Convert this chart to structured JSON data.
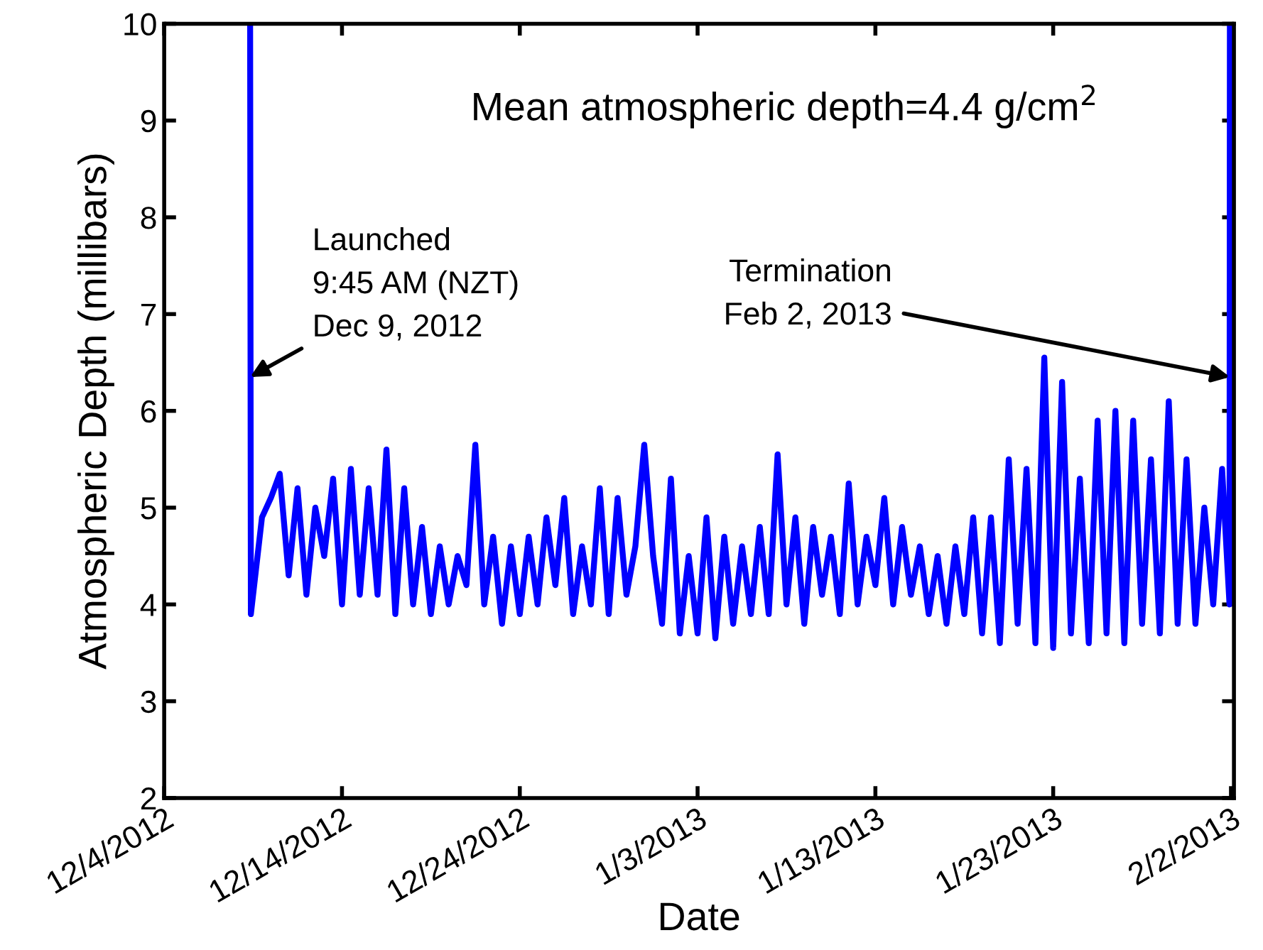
{
  "chart_data": {
    "type": "line",
    "xlabel": "Date",
    "ylabel": "Atmospheric Depth (millibars)",
    "xlim": [
      "2012-12-04",
      "2013-02-02T04:00"
    ],
    "xticks": [
      {
        "value": "2012-12-04",
        "label": "12/4/2012"
      },
      {
        "value": "2012-12-14",
        "label": "12/14/2012"
      },
      {
        "value": "2012-12-24",
        "label": "12/24/2012"
      },
      {
        "value": "2013-01-03",
        "label": "1/3/2013"
      },
      {
        "value": "2013-01-13",
        "label": "1/13/2013"
      },
      {
        "value": "2013-01-23",
        "label": "1/23/2013"
      },
      {
        "value": "2013-02-02",
        "label": "2/2/2013"
      }
    ],
    "ylim": [
      2,
      10
    ],
    "yticks": [
      2,
      3,
      4,
      5,
      6,
      7,
      8,
      9,
      10
    ],
    "grid": false,
    "legend": false,
    "marker": "none",
    "line_style": "solid",
    "annotations": [
      "Mean atmospheric depth=4.4 g/cm$^{2}$",
      {
        "text": "Launched\n9:45 AM (NZT)\nDec 9, 2012",
        "x": "2012-12-08T20:00",
        "y": 6.35
      },
      {
        "text": "Termination\nFeb 2, 2013",
        "x": "2013-02-01T22:30",
        "y": 6.35
      }
    ],
    "series": [
      {
        "color": "#0000ff",
        "x": [
          "2012-12-08T20:00",
          "2012-12-08T21:00",
          "2012-12-09T12:00",
          "2012-12-10T00:00",
          "2012-12-10T12:00",
          "2012-12-11T00:00",
          "2012-12-11T12:00",
          "2012-12-12T00:00",
          "2012-12-12T12:00",
          "2012-12-13T00:00",
          "2012-12-13T12:00",
          "2012-12-14T00:00",
          "2012-12-14T12:00",
          "2012-12-15T00:00",
          "2012-12-15T12:00",
          "2012-12-16T00:00",
          "2012-12-16T12:00",
          "2012-12-17T00:00",
          "2012-12-17T12:00",
          "2012-12-18T00:00",
          "2012-12-18T12:00",
          "2012-12-19T00:00",
          "2012-12-19T12:00",
          "2012-12-20T00:00",
          "2012-12-20T12:00",
          "2012-12-21T00:00",
          "2012-12-21T12:00",
          "2012-12-22T00:00",
          "2012-12-22T12:00",
          "2012-12-23T00:00",
          "2012-12-23T12:00",
          "2012-12-24T00:00",
          "2012-12-24T12:00",
          "2012-12-25T00:00",
          "2012-12-25T12:00",
          "2012-12-26T00:00",
          "2012-12-26T12:00",
          "2012-12-27T00:00",
          "2012-12-27T12:00",
          "2012-12-28T00:00",
          "2012-12-28T12:00",
          "2012-12-29T00:00",
          "2012-12-29T12:00",
          "2012-12-30T00:00",
          "2012-12-30T12:00",
          "2012-12-31T00:00",
          "2012-12-31T12:00",
          "2013-01-01T00:00",
          "2013-01-01T12:00",
          "2013-01-02T00:00",
          "2013-01-02T12:00",
          "2013-01-03T00:00",
          "2013-01-03T12:00",
          "2013-01-04T00:00",
          "2013-01-04T12:00",
          "2013-01-05T00:00",
          "2013-01-05T12:00",
          "2013-01-06T00:00",
          "2013-01-06T12:00",
          "2013-01-07T00:00",
          "2013-01-07T12:00",
          "2013-01-08T00:00",
          "2013-01-08T12:00",
          "2013-01-09T00:00",
          "2013-01-09T12:00",
          "2013-01-10T00:00",
          "2013-01-10T12:00",
          "2013-01-11T00:00",
          "2013-01-11T12:00",
          "2013-01-12T00:00",
          "2013-01-12T12:00",
          "2013-01-13T00:00",
          "2013-01-13T12:00",
          "2013-01-14T00:00",
          "2013-01-14T12:00",
          "2013-01-15T00:00",
          "2013-01-15T12:00",
          "2013-01-16T00:00",
          "2013-01-16T12:00",
          "2013-01-17T00:00",
          "2013-01-17T12:00",
          "2013-01-18T00:00",
          "2013-01-18T12:00",
          "2013-01-19T00:00",
          "2013-01-19T12:00",
          "2013-01-20T00:00",
          "2013-01-20T12:00",
          "2013-01-21T00:00",
          "2013-01-21T12:00",
          "2013-01-22T00:00",
          "2013-01-22T12:00",
          "2013-01-23T00:00",
          "2013-01-23T12:00",
          "2013-01-24T00:00",
          "2013-01-24T12:00",
          "2013-01-25T00:00",
          "2013-01-25T12:00",
          "2013-01-26T00:00",
          "2013-01-26T12:00",
          "2013-01-27T00:00",
          "2013-01-27T12:00",
          "2013-01-28T00:00",
          "2013-01-28T12:00",
          "2013-01-29T00:00",
          "2013-01-29T12:00",
          "2013-01-30T00:00",
          "2013-01-30T12:00",
          "2013-01-31T00:00",
          "2013-01-31T12:00",
          "2013-02-01T00:00",
          "2013-02-01T12:00",
          "2013-02-01T22:00",
          "2013-02-01T22:30"
        ],
        "values": [
          10,
          3.9,
          4.9,
          5.1,
          5.35,
          4.3,
          5.2,
          4.1,
          5.0,
          4.5,
          5.3,
          4.0,
          5.4,
          4.1,
          5.2,
          4.1,
          5.6,
          3.9,
          5.2,
          4.0,
          4.8,
          3.9,
          4.6,
          4.0,
          4.5,
          4.2,
          5.65,
          4.0,
          4.7,
          3.8,
          4.6,
          3.9,
          4.7,
          4.0,
          4.9,
          4.2,
          5.1,
          3.9,
          4.6,
          4.0,
          5.2,
          3.9,
          5.1,
          4.1,
          4.6,
          5.65,
          4.5,
          3.8,
          5.3,
          3.7,
          4.5,
          3.7,
          4.9,
          3.65,
          4.7,
          3.8,
          4.6,
          3.9,
          4.8,
          3.9,
          5.55,
          4.0,
          4.9,
          3.8,
          4.8,
          4.1,
          4.7,
          3.9,
          5.25,
          4.0,
          4.7,
          4.2,
          5.1,
          4.0,
          4.8,
          4.1,
          4.6,
          3.9,
          4.5,
          3.8,
          4.6,
          3.9,
          4.9,
          3.7,
          4.9,
          3.6,
          5.5,
          3.8,
          5.4,
          3.6,
          6.55,
          3.55,
          6.3,
          3.7,
          5.3,
          3.6,
          5.9,
          3.7,
          6.0,
          3.6,
          5.9,
          3.8,
          5.5,
          3.7,
          6.1,
          3.8,
          5.5,
          3.8,
          5.0,
          4.0,
          5.4,
          4.0,
          10
        ]
      }
    ]
  }
}
